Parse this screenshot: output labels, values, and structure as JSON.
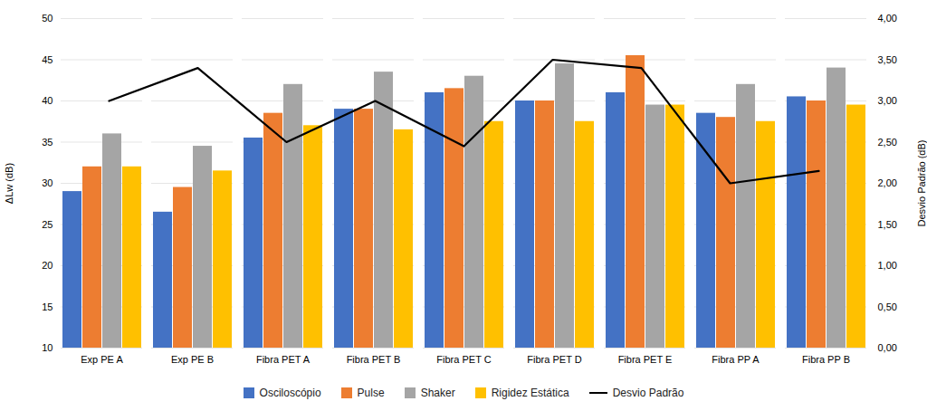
{
  "chart_data": {
    "type": "bar",
    "categories": [
      "Exp PE A",
      "Exp PE B",
      "Fibra PET A",
      "Fibra PET B",
      "Fibra PET C",
      "Fibra PET D",
      "Fibra PET E",
      "Fibra PP A",
      "Fibra PP B"
    ],
    "series": [
      {
        "name": "Osciloscópio",
        "color": "#4472C4",
        "values": [
          29,
          26.5,
          35.5,
          39,
          41,
          40,
          41,
          38.5,
          40.5
        ]
      },
      {
        "name": "Pulse",
        "color": "#ED7D31",
        "values": [
          32,
          29.5,
          38.5,
          39,
          41.5,
          40,
          45.5,
          38,
          40
        ]
      },
      {
        "name": "Shaker",
        "color": "#A5A5A5",
        "values": [
          36,
          34.5,
          42,
          43.5,
          43,
          44.5,
          39.5,
          42,
          44
        ]
      },
      {
        "name": "Rigidez Estática",
        "color": "#FFC000",
        "values": [
          32,
          31.5,
          37,
          36.5,
          37.5,
          37.5,
          39.5,
          37.5,
          39.5
        ]
      },
      {
        "name": "Desvio Padrão",
        "type": "line",
        "axis": "y2",
        "color": "#000000",
        "values": [
          3.0,
          3.4,
          2.5,
          3.0,
          2.45,
          3.5,
          3.4,
          2.0,
          2.15
        ]
      }
    ],
    "ylabel": "ΔLw (dB)",
    "y2label": "Desvio Padrão (dB)",
    "ylim": [
      10,
      50
    ],
    "yticks": [
      10,
      15,
      20,
      25,
      30,
      35,
      40,
      45,
      50
    ],
    "y2lim": [
      0.0,
      4.0
    ],
    "y2ticks": [
      {
        "value": 0.0,
        "label": "0,00"
      },
      {
        "value": 0.5,
        "label": "0,50"
      },
      {
        "value": 1.0,
        "label": "1,00"
      },
      {
        "value": 1.5,
        "label": "1,50"
      },
      {
        "value": 2.0,
        "label": "2,00"
      },
      {
        "value": 2.5,
        "label": "2,50"
      },
      {
        "value": 3.0,
        "label": "3,00"
      },
      {
        "value": 3.5,
        "label": "3,50"
      },
      {
        "value": 4.0,
        "label": "4,00"
      }
    ],
    "grid": true,
    "legend": "bottom"
  }
}
